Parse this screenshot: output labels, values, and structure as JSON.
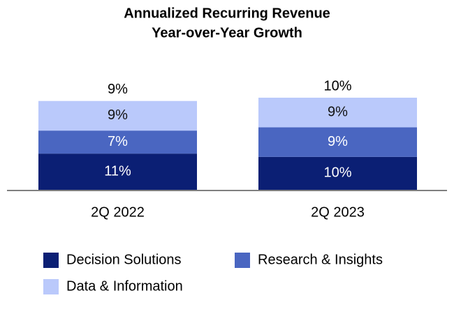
{
  "chart_data": {
    "type": "stacked_bar",
    "title": [
      "Annualized Recurring Revenue",
      "Year-over-Year Growth"
    ],
    "categories": [
      "2Q 2022",
      "2Q 2023"
    ],
    "series": [
      {
        "name": "Decision Solutions",
        "color": "#0b1f74",
        "values": [
          11,
          10
        ],
        "value_labels": [
          "11%",
          "10%"
        ]
      },
      {
        "name": "Research & Insights",
        "color": "#4a66c1",
        "values": [
          7,
          9
        ],
        "value_labels": [
          "7%",
          "9%"
        ]
      },
      {
        "name": "Data & Information",
        "color": "#bac9fb",
        "values": [
          9,
          9
        ],
        "value_labels": [
          "9%",
          "9%"
        ]
      }
    ],
    "totals": {
      "values": [
        9,
        10
      ],
      "value_labels": [
        "9%",
        "10%"
      ]
    }
  }
}
